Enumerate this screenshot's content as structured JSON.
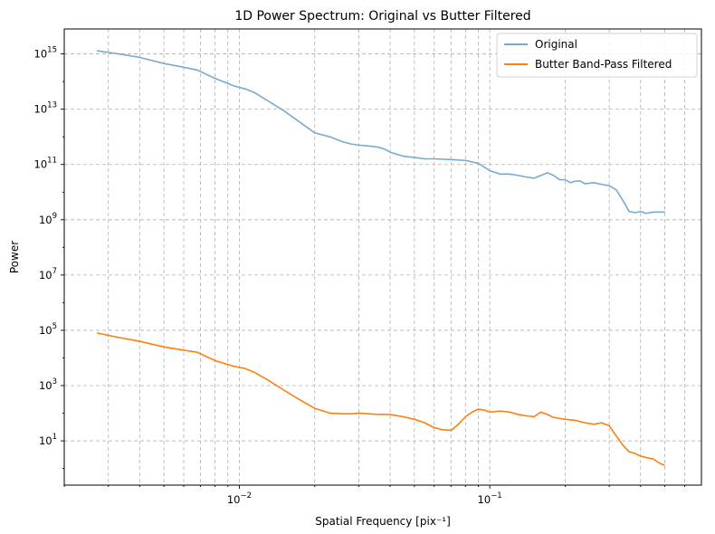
{
  "chart_data": {
    "type": "line",
    "title": "1D Power Spectrum: Original vs Butter Filtered",
    "xlabel": "Spatial Frequency [pix⁻¹]",
    "ylabel": "Power",
    "xscale": "log",
    "yscale": "log",
    "xlim": [
      0.002,
      0.7
    ],
    "ylim": [
      0.25,
      8000000000000000.0
    ],
    "grid": "both major and minor, dashed",
    "legend_position": "top-right",
    "x_ticks": [
      {
        "value": 0.01,
        "base": "10",
        "exp": "−2"
      },
      {
        "value": 0.1,
        "base": "10",
        "exp": "−1"
      }
    ],
    "y_ticks": [
      {
        "value": 10,
        "base": "10",
        "exp": "1"
      },
      {
        "value": 1000,
        "base": "10",
        "exp": "3"
      },
      {
        "value": 100000,
        "base": "10",
        "exp": "5"
      },
      {
        "value": 10000000,
        "base": "10",
        "exp": "7"
      },
      {
        "value": 1000000000,
        "base": "10",
        "exp": "9"
      },
      {
        "value": 100000000000,
        "base": "10",
        "exp": "11"
      },
      {
        "value": 10000000000000,
        "base": "10",
        "exp": "13"
      },
      {
        "value": 1000000000000000,
        "base": "10",
        "exp": "15"
      }
    ],
    "series": [
      {
        "name": "Original",
        "color": "#77aad3",
        "x": [
          0.0027,
          0.0033,
          0.004,
          0.005,
          0.006,
          0.0068,
          0.008,
          0.0095,
          0.0105,
          0.0115,
          0.013,
          0.015,
          0.017,
          0.02,
          0.023,
          0.026,
          0.028,
          0.03,
          0.032,
          0.034,
          0.036,
          0.038,
          0.04,
          0.045,
          0.05,
          0.055,
          0.06,
          0.07,
          0.08,
          0.09,
          0.1,
          0.11,
          0.12,
          0.13,
          0.14,
          0.15,
          0.16,
          0.17,
          0.18,
          0.19,
          0.2,
          0.21,
          0.22,
          0.23,
          0.24,
          0.26,
          0.28,
          0.3,
          0.32,
          0.34,
          0.36,
          0.38,
          0.4,
          0.42,
          0.45,
          0.48,
          0.5
        ],
        "y": [
          1300000000000000.0,
          1000000000000000.0,
          750000000000000.0,
          450000000000000.0,
          330000000000000.0,
          260000000000000.0,
          130000000000000.0,
          70000000000000.0,
          55000000000000.0,
          40000000000000.0,
          20000000000000.0,
          9000000000000.0,
          4000000000000.0,
          1400000000000.0,
          1000000000000.0,
          650000000000.0,
          550000000000.0,
          500000000000.0,
          480000000000.0,
          450000000000.0,
          420000000000.0,
          360000000000.0,
          280000000000.0,
          200000000000.0,
          180000000000.0,
          160000000000.0,
          160000000000.0,
          150000000000.0,
          140000000000.0,
          110000000000.0,
          60000000000.0,
          45000000000.0,
          45000000000.0,
          40000000000.0,
          35000000000.0,
          32000000000.0,
          40000000000.0,
          50000000000.0,
          40000000000.0,
          28000000000.0,
          28000000000.0,
          22000000000.0,
          25000000000.0,
          25000000000.0,
          20000000000.0,
          22000000000.0,
          19000000000.0,
          17000000000.0,
          12000000000.0,
          5000000000.0,
          2000000000.0,
          1800000000.0,
          2000000000.0,
          1700000000.0,
          1900000000.0,
          1900000000.0,
          1900000000.0
        ]
      },
      {
        "name": "Butter Band-Pass Filtered",
        "color": "#ff7f0e",
        "x": [
          0.0027,
          0.0033,
          0.004,
          0.005,
          0.006,
          0.0068,
          0.008,
          0.0095,
          0.0105,
          0.0115,
          0.013,
          0.015,
          0.017,
          0.02,
          0.023,
          0.026,
          0.028,
          0.03,
          0.035,
          0.04,
          0.045,
          0.05,
          0.055,
          0.06,
          0.065,
          0.07,
          0.075,
          0.08,
          0.085,
          0.09,
          0.095,
          0.1,
          0.11,
          0.12,
          0.13,
          0.14,
          0.15,
          0.16,
          0.17,
          0.18,
          0.2,
          0.22,
          0.24,
          0.26,
          0.28,
          0.3,
          0.32,
          0.34,
          0.36,
          0.38,
          0.4,
          0.42,
          0.45,
          0.48,
          0.5
        ],
        "y": [
          80000,
          55000,
          40000,
          25000,
          19000,
          16000,
          8000,
          5000,
          4200,
          3000,
          1600,
          700,
          350,
          150,
          100,
          95,
          95,
          100,
          92,
          90,
          75,
          60,
          45,
          30,
          25,
          24,
          40,
          75,
          110,
          140,
          130,
          110,
          120,
          110,
          90,
          80,
          75,
          110,
          90,
          70,
          60,
          55,
          45,
          40,
          45,
          35,
          15,
          7,
          4,
          3.5,
          2.8,
          2.5,
          2.2,
          1.5,
          1.3
        ]
      }
    ]
  }
}
